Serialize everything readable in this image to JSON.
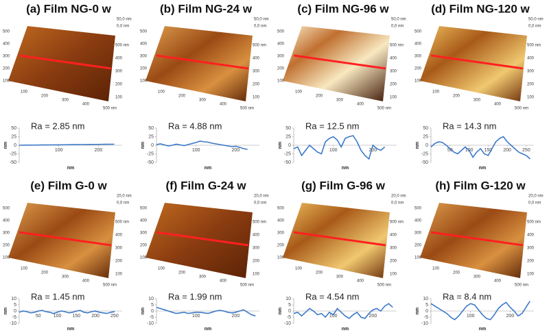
{
  "chart_data": [
    {
      "type": "line",
      "title": "(a) Film NG-0 w",
      "annotation": "Ra = 2.85 nm",
      "xlabel": "nm",
      "ylabel": "nm",
      "color": "#3a78c8",
      "x": [
        0,
        20,
        40,
        60,
        80,
        100,
        120,
        140,
        160,
        180,
        200,
        220,
        240
      ],
      "values": [
        0,
        0.3,
        0.5,
        0.8,
        1,
        1.2,
        1.5,
        1.8,
        2,
        2.2,
        2.5,
        2.8,
        3
      ],
      "xlim": [
        0,
        260
      ],
      "ylim": [
        -50,
        50
      ],
      "xticks": [
        100,
        200
      ],
      "yticks": [
        50,
        25,
        0,
        -25,
        -50
      ],
      "afm": {
        "z_labels": [
          "50,0 nm",
          "0,0 nm"
        ],
        "left_ticks": [
          "500",
          "400",
          "300",
          "200",
          "100"
        ],
        "bottom_ticks": [
          "100",
          "200",
          "300",
          "400",
          "500 nm"
        ],
        "right_ticks": [
          "500 nm",
          "400",
          "300",
          "200",
          "100"
        ]
      }
    },
    {
      "type": "line",
      "title": "(b) Film NG-24 w",
      "annotation": "Ra = 4.88 nm",
      "xlabel": "nm",
      "ylabel": "nm",
      "color": "#3a78c8",
      "x": [
        0,
        10,
        20,
        30,
        40,
        50,
        60,
        70,
        80,
        90,
        100,
        110,
        120,
        130,
        140,
        150,
        160,
        170,
        180,
        190,
        200,
        210,
        220,
        230
      ],
      "values": [
        2,
        4,
        1,
        -2,
        0,
        3,
        1,
        -1,
        2,
        5,
        8,
        12,
        10,
        9,
        6,
        4,
        2,
        0,
        -2,
        -4,
        -3,
        -6,
        -10,
        -12
      ],
      "xlim": [
        0,
        260
      ],
      "ylim": [
        -50,
        50
      ],
      "xticks": [
        100,
        200
      ],
      "yticks": [
        50,
        25,
        0,
        -25,
        -50
      ],
      "afm": {
        "z_labels": [
          "50,0 nm",
          "0,0 nm"
        ],
        "left_ticks": [
          "500",
          "400",
          "300",
          "200",
          "100"
        ],
        "bottom_ticks": [
          "100",
          "200",
          "300",
          "400",
          "500 nm"
        ],
        "right_ticks": [
          "500 nm",
          "400",
          "300",
          "200",
          "100"
        ]
      }
    },
    {
      "type": "line",
      "title": "(c) Film NG-96 w",
      "annotation": "Ra = 12.5 nm",
      "xlabel": "nm",
      "ylabel": "nm",
      "color": "#3a78c8",
      "x": [
        0,
        10,
        20,
        30,
        40,
        50,
        60,
        70,
        80,
        90,
        100,
        110,
        120,
        130,
        140,
        150,
        160,
        170,
        180,
        190,
        200,
        210,
        220,
        230
      ],
      "values": [
        -10,
        -5,
        -30,
        -15,
        0,
        -10,
        -20,
        -25,
        10,
        20,
        25,
        15,
        -5,
        20,
        25,
        28,
        10,
        -15,
        -30,
        -40,
        0,
        -10,
        -15,
        -5
      ],
      "xlim": [
        0,
        260
      ],
      "ylim": [
        -50,
        50
      ],
      "xticks": [
        100,
        200
      ],
      "yticks": [
        50,
        25,
        0,
        -25,
        -50
      ],
      "afm": {
        "z_labels": [
          "50,0 nm",
          "0,0 nm"
        ],
        "left_ticks": [
          "500",
          "400",
          "300",
          "200",
          "100"
        ],
        "bottom_ticks": [
          "100",
          "200",
          "300",
          "400",
          "500 nm"
        ],
        "right_ticks": [
          "500 nm",
          "400",
          "300",
          "200",
          "100"
        ]
      }
    },
    {
      "type": "line",
      "title": "(d) Film NG-120 w",
      "annotation": "Ra = 14.3 nm",
      "xlabel": "nm",
      "ylabel": "nm",
      "color": "#3a78c8",
      "x": [
        0,
        10,
        20,
        30,
        40,
        50,
        60,
        70,
        80,
        90,
        100,
        110,
        120,
        130,
        140,
        150,
        160,
        170,
        180,
        190,
        200,
        210,
        220,
        230,
        240,
        250,
        260
      ],
      "values": [
        -5,
        5,
        10,
        8,
        0,
        -10,
        -20,
        -25,
        -15,
        -5,
        -15,
        -35,
        -20,
        -10,
        -25,
        -30,
        -10,
        10,
        20,
        25,
        10,
        0,
        -10,
        -20,
        -25,
        -30,
        -40
      ],
      "xlim": [
        0,
        270
      ],
      "ylim": [
        -50,
        50
      ],
      "xticks": [
        50,
        100,
        150,
        200,
        250
      ],
      "yticks": [
        50,
        25,
        0,
        -25,
        -50
      ],
      "afm": {
        "z_labels": [
          "50,0 nm",
          "0,0 nm"
        ],
        "left_ticks": [
          "500",
          "400",
          "300",
          "200",
          "100"
        ],
        "bottom_ticks": [
          "100",
          "200",
          "300",
          "400",
          "500 nm"
        ],
        "right_ticks": [
          "500 nm",
          "400",
          "300",
          "200",
          "100"
        ]
      }
    },
    {
      "type": "line",
      "title": "(e) Film G-0 w",
      "annotation": "Ra = 1.45 nm",
      "xlabel": "nm",
      "ylabel": "nm",
      "color": "#3a78c8",
      "x": [
        0,
        10,
        20,
        30,
        40,
        50,
        60,
        70,
        80,
        90,
        100,
        110,
        120,
        130,
        140,
        150,
        160,
        170,
        180,
        190,
        200,
        210,
        220,
        230,
        240,
        250
      ],
      "values": [
        -1,
        0,
        -0.5,
        -1.5,
        -1,
        0,
        0.5,
        -0.5,
        -1,
        -2,
        -1,
        0,
        -0.5,
        -1.5,
        -1,
        0,
        0.5,
        -1,
        -1.5,
        -0.5,
        0,
        -1,
        -1.5,
        -2,
        -1,
        -0.5
      ],
      "xlim": [
        0,
        270
      ],
      "ylim": [
        -10,
        10
      ],
      "xticks": [
        50,
        100,
        150,
        200,
        250
      ],
      "yticks": [
        10,
        5,
        0,
        -5,
        -10
      ],
      "afm": {
        "z_labels": [
          "20,0 nm",
          "0,0 nm"
        ],
        "left_ticks": [
          "500",
          "400",
          "300",
          "200",
          "100"
        ],
        "bottom_ticks": [
          "100",
          "200",
          "300",
          "400",
          "500 nm"
        ],
        "right_ticks": [
          "500 nm",
          "400",
          "300",
          "200",
          "100"
        ]
      }
    },
    {
      "type": "line",
      "title": "(f) Film G-24 w",
      "annotation": "Ra = 1.99 nm",
      "xlabel": "nm",
      "ylabel": "nm",
      "color": "#3a78c8",
      "x": [
        0,
        10,
        20,
        30,
        40,
        50,
        60,
        70,
        80,
        90,
        100,
        110,
        120,
        130,
        140,
        150,
        160,
        170,
        180,
        190,
        200,
        210,
        220,
        230,
        240,
        250
      ],
      "values": [
        3,
        2,
        1,
        0,
        -1,
        -2,
        -1.5,
        -1,
        -2,
        -1.5,
        -1,
        -1,
        -1.5,
        -2,
        -1,
        0,
        0.5,
        0,
        -1,
        -1.5,
        -1,
        0,
        1,
        -1,
        -3,
        -4
      ],
      "xlim": [
        0,
        260
      ],
      "ylim": [
        -10,
        10
      ],
      "xticks": [
        100,
        200
      ],
      "yticks": [
        10,
        5,
        0,
        -5,
        -10
      ],
      "afm": {
        "z_labels": [
          "20,0 nm",
          "0,0 nm"
        ],
        "left_ticks": [
          "500",
          "400",
          "300",
          "200",
          "100"
        ],
        "bottom_ticks": [
          "100",
          "200",
          "300",
          "400",
          "500 nm"
        ],
        "right_ticks": [
          "500 nm",
          "400",
          "300",
          "200",
          "100"
        ]
      }
    },
    {
      "type": "line",
      "title": "(g) Film G-96 w",
      "annotation": "Ra = 4.54 nm",
      "xlabel": "nm",
      "ylabel": "nm",
      "color": "#3a78c8",
      "x": [
        0,
        10,
        20,
        30,
        40,
        50,
        60,
        70,
        80,
        90,
        100,
        110,
        120,
        130,
        140,
        150,
        160,
        170,
        180,
        190,
        200,
        210,
        220,
        230,
        240,
        250
      ],
      "values": [
        -2,
        -1,
        -4,
        -1,
        2,
        0,
        -3,
        -2,
        -5,
        -1,
        -3,
        2,
        -1,
        -4,
        -6,
        -3,
        -1,
        -5,
        -6,
        -2,
        1,
        2,
        0,
        4,
        6,
        3
      ],
      "xlim": [
        0,
        260
      ],
      "ylim": [
        -10,
        10
      ],
      "xticks": [
        100,
        200
      ],
      "yticks": [
        10,
        5,
        0,
        -5,
        -10
      ],
      "afm": {
        "z_labels": [
          "20,0 nm",
          "0,0 nm"
        ],
        "left_ticks": [
          "500",
          "400",
          "300",
          "200",
          "100"
        ],
        "bottom_ticks": [
          "100",
          "200",
          "300",
          "400",
          "500 nm"
        ],
        "right_ticks": [
          "500 nm",
          "400",
          "300",
          "200",
          "100"
        ]
      }
    },
    {
      "type": "line",
      "title": "(h) Film G-120 w",
      "annotation": "Ra = 8.4 nm",
      "xlabel": "nm",
      "ylabel": "nm",
      "color": "#3a78c8",
      "x": [
        0,
        10,
        20,
        30,
        40,
        50,
        60,
        70,
        80,
        90,
        100,
        110,
        120,
        130,
        140,
        150,
        160,
        170,
        180,
        190,
        200,
        210,
        220,
        230,
        240,
        250
      ],
      "values": [
        6,
        4,
        2,
        0,
        -2,
        -5,
        -7,
        -4,
        0,
        4,
        6,
        5,
        1,
        -3,
        -6,
        -7,
        -3,
        2,
        5,
        7,
        3,
        0,
        -4,
        -2,
        3,
        8
      ],
      "xlim": [
        0,
        260
      ],
      "ylim": [
        -10,
        10
      ],
      "xticks": [
        100,
        200
      ],
      "yticks": [
        10,
        5,
        0,
        -5,
        -10
      ],
      "afm": {
        "z_labels": [
          "20,0 nm",
          "0,0 nm"
        ],
        "left_ticks": [
          "500",
          "400",
          "300",
          "200",
          "100"
        ],
        "bottom_ticks": [
          "100",
          "200",
          "300",
          "400",
          "500 nm"
        ],
        "right_ticks": [
          "500 nm",
          "400",
          "300",
          "200",
          "100"
        ]
      }
    }
  ]
}
